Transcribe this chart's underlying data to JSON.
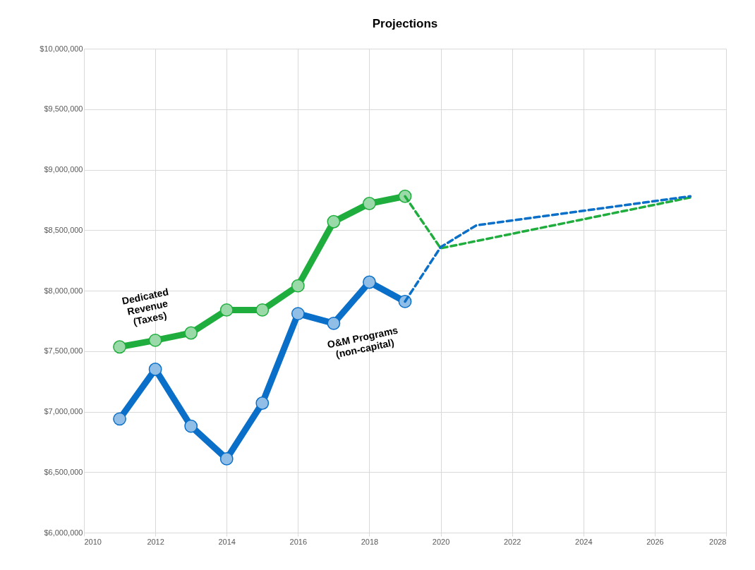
{
  "chart_data": {
    "type": "line",
    "title": "Projections",
    "xlim": [
      2010,
      2028
    ],
    "xticks": [
      2010,
      2012,
      2014,
      2016,
      2018,
      2020,
      2022,
      2024,
      2026,
      2028
    ],
    "ylim": [
      6000000,
      10000000
    ],
    "yticks": [
      {
        "value": 6000000,
        "label": "$6,000,000"
      },
      {
        "value": 6500000,
        "label": "$6,500,000"
      },
      {
        "value": 7000000,
        "label": "$7,000,000"
      },
      {
        "value": 7500000,
        "label": "$7,500,000"
      },
      {
        "value": 8000000,
        "label": "$8,000,000"
      },
      {
        "value": 8500000,
        "label": "$8,500,000"
      },
      {
        "value": 9000000,
        "label": "$9,000,000"
      },
      {
        "value": 9500000,
        "label": "$9,500,000"
      },
      {
        "value": 10000000,
        "label": "$10,000,000"
      }
    ],
    "grid": true,
    "legend": false,
    "series": [
      {
        "name": "Dedicated\nRevenue\n(Taxes)",
        "color": "#1fae3e",
        "marker": "circle",
        "line_style": "solid",
        "x": [
          2011,
          2012,
          2013,
          2014,
          2015,
          2016,
          2017,
          2018,
          2019
        ],
        "values": [
          7535000,
          7590000,
          7650000,
          7840000,
          7840000,
          8040000,
          8570000,
          8720000,
          8780000
        ]
      },
      {
        "name": "O&M Programs\n(non-capital)",
        "color": "#0a6fc8",
        "marker": "circle",
        "line_style": "solid",
        "x": [
          2011,
          2012,
          2013,
          2014,
          2015,
          2016,
          2017,
          2018,
          2019
        ],
        "values": [
          6940000,
          7350000,
          6880000,
          6610000,
          7070000,
          7810000,
          7730000,
          8070000,
          7910000
        ]
      },
      {
        "color": "#1fae3e",
        "marker": "none",
        "line_style": "dashed",
        "x": [
          2019,
          2020,
          2027
        ],
        "values": [
          8780000,
          8350000,
          8770000
        ]
      },
      {
        "color": "#0a6fc8",
        "marker": "none",
        "line_style": "dashed",
        "x": [
          2019,
          2020,
          2021,
          2027
        ],
        "values": [
          7910000,
          8360000,
          8540000,
          8780000
        ]
      }
    ]
  }
}
